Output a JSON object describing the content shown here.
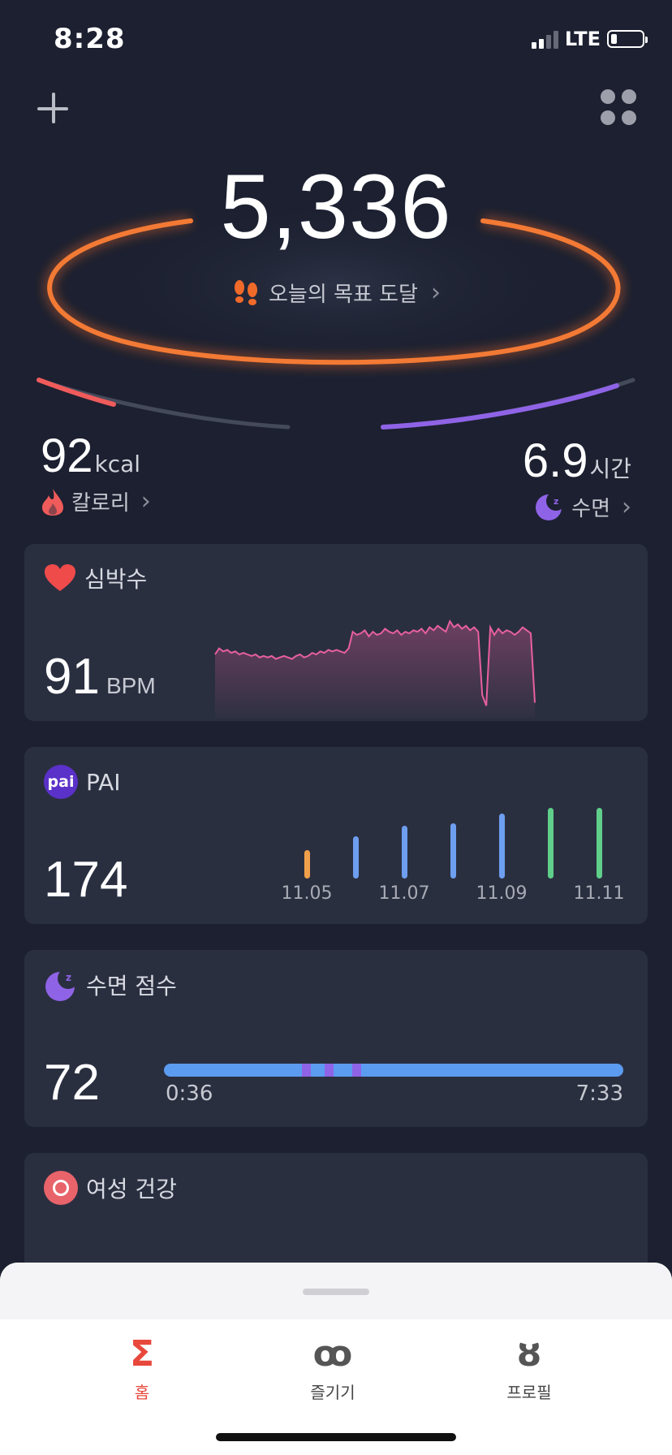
{
  "status": {
    "time": "8:28",
    "network": "LTE",
    "battery_level": 0.2
  },
  "steps": {
    "value": "5,336",
    "goal_text": "오늘의 목표 도달"
  },
  "calories": {
    "value": "92",
    "unit": "kcal",
    "label": "칼로리"
  },
  "sleep_summary": {
    "value": "6.9",
    "unit": "시간",
    "label": "수면"
  },
  "heart": {
    "title": "심박수",
    "value": "91",
    "unit": "BPM",
    "chart_data": {
      "type": "line",
      "values": [
        82,
        86,
        84,
        85,
        83,
        84,
        82,
        83,
        82,
        81,
        82,
        80,
        81,
        80,
        81,
        79,
        80,
        81,
        80,
        79,
        81,
        82,
        80,
        81,
        83,
        82,
        84,
        83,
        85,
        84,
        85,
        84,
        83,
        86,
        97,
        95,
        96,
        98,
        94,
        97,
        95,
        96,
        99,
        97,
        96,
        98,
        95,
        97,
        96,
        98,
        97,
        99,
        96,
        100,
        98,
        101,
        99,
        97,
        104,
        100,
        102,
        99,
        101,
        98,
        100,
        97,
        55,
        48,
        100,
        95,
        99,
        96,
        98,
        97,
        95,
        97,
        100,
        98,
        96,
        50
      ]
    }
  },
  "pai": {
    "title": "PAI",
    "badge": "pai",
    "value": "174",
    "dates": [
      "11.05",
      "11.07",
      "11.09",
      "11.11"
    ],
    "chart_data": {
      "type": "bar",
      "categories": [
        "11.05",
        "11.06",
        "11.07",
        "11.08",
        "11.09",
        "11.10",
        "11.11"
      ],
      "values": [
        35,
        52,
        65,
        68,
        80,
        87,
        87
      ],
      "colors": [
        "#f0a04a",
        "#6d9ef0",
        "#6d9ef0",
        "#6d9ef0",
        "#6d9ef0",
        "#5fcf8a",
        "#5fcf8a"
      ]
    }
  },
  "sleep_score": {
    "title": "수면 점수",
    "value": "72",
    "start": "0:36",
    "end": "7:33",
    "awake_marks": [
      0.3,
      0.35,
      0.41
    ]
  },
  "women_health": {
    "title": "여성 건강"
  },
  "tabs": [
    {
      "label": "홈",
      "icon": "Σ",
      "color": "#e8483c"
    },
    {
      "label": "즐기기",
      "icon": "ꝏ",
      "color": "#555"
    },
    {
      "label": "프로필",
      "icon": "ȣ",
      "color": "#555"
    }
  ],
  "colors": {
    "accent": "#f06a2a",
    "calorie": "#ef5b5b",
    "sleep": "#8f63e6",
    "heart": "#e8609e"
  }
}
